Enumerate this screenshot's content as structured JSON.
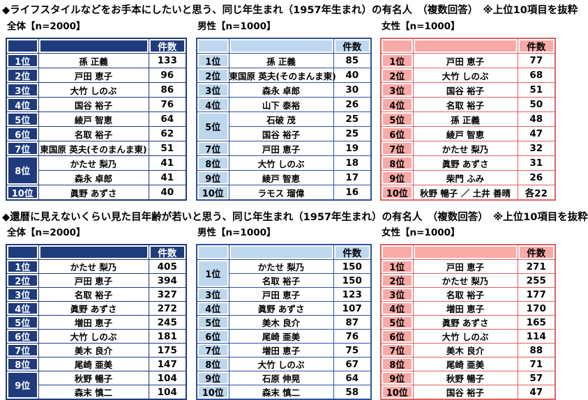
{
  "count_header_label": "件数",
  "sections": [
    {
      "title": "◆ライフスタイルなどをお手本にしたいと思う、同じ年生まれ（1957年生まれ）の有名人　（複数回答）　※上位10項目を抜粋",
      "tables": [
        {
          "label": "全体【n=2000】",
          "theme": "navy",
          "rows": [
            {
              "rank": "1位",
              "name": "孫 正義",
              "count": "133"
            },
            {
              "rank": "2位",
              "name": "戸田 恵子",
              "count": "96"
            },
            {
              "rank": "3位",
              "name": "大竹 しのぶ",
              "count": "86"
            },
            {
              "rank": "4位",
              "name": "国谷 裕子",
              "count": "76"
            },
            {
              "rank": "5位",
              "name": "綾戸 智恵",
              "count": "64"
            },
            {
              "rank": "6位",
              "name": "名取 裕子",
              "count": "62"
            },
            {
              "rank": "7位",
              "name": "東国原 英夫(そのまんま東)",
              "count": "51"
            },
            {
              "rank": "8位",
              "span": 2,
              "name": "かたせ 梨乃",
              "count": "41"
            },
            {
              "name": "森永 卓郎",
              "count": "41"
            },
            {
              "rank": "10位",
              "name": "眞野 あずさ",
              "count": "40"
            }
          ]
        },
        {
          "label": "男性【n=1000】",
          "theme": "blue",
          "rows": [
            {
              "rank": "1位",
              "name": "孫 正義",
              "count": "85"
            },
            {
              "rank": "2位",
              "name": "東国原 英夫(そのまんま東)",
              "count": "40"
            },
            {
              "rank": "3位",
              "name": "森永 卓郎",
              "count": "30"
            },
            {
              "rank": "4位",
              "name": "山下 泰裕",
              "count": "26"
            },
            {
              "rank": "5位",
              "span": 2,
              "name": "石破 茂",
              "count": "25"
            },
            {
              "name": "国谷 裕子",
              "count": "25"
            },
            {
              "rank": "7位",
              "name": "戸田 恵子",
              "count": "19"
            },
            {
              "rank": "8位",
              "name": "大竹 しのぶ",
              "count": "18"
            },
            {
              "rank": "9位",
              "name": "綾戸 智恵",
              "count": "17"
            },
            {
              "rank": "10位",
              "name": "ラモス 瑠偉",
              "count": "16"
            }
          ]
        },
        {
          "label": "女性【n=1000】",
          "theme": "pink",
          "rows": [
            {
              "rank": "1位",
              "name": "戸田 恵子",
              "count": "77"
            },
            {
              "rank": "2位",
              "name": "大竹 しのぶ",
              "count": "68"
            },
            {
              "rank": "3位",
              "name": "国谷 裕子",
              "count": "51"
            },
            {
              "rank": "4位",
              "name": "名取 裕子",
              "count": "50"
            },
            {
              "rank": "5位",
              "name": "孫 正義",
              "count": "48"
            },
            {
              "rank": "6位",
              "name": "綾戸 智恵",
              "count": "47"
            },
            {
              "rank": "7位",
              "name": "かたせ 梨乃",
              "count": "32"
            },
            {
              "rank": "8位",
              "name": "眞野 あずさ",
              "count": "31"
            },
            {
              "rank": "9位",
              "name": "柴門 ふみ",
              "count": "26"
            },
            {
              "rank": "10位",
              "name": "秋野 暢子 ／ 土井 善晴",
              "count": "各22"
            }
          ]
        }
      ]
    },
    {
      "title": "◆還暦に見えないくらい見た目年齢が若いと思う、同じ年生まれ（1957年生まれ）の有名人　（複数回答）　※上位10項目を抜粋",
      "tables": [
        {
          "label": "全体【n=2000】",
          "theme": "navy",
          "rows": [
            {
              "rank": "1位",
              "name": "かたせ 梨乃",
              "count": "405"
            },
            {
              "rank": "2位",
              "name": "戸田 恵子",
              "count": "394"
            },
            {
              "rank": "3位",
              "name": "名取 裕子",
              "count": "327"
            },
            {
              "rank": "4位",
              "name": "眞野 あずさ",
              "count": "272"
            },
            {
              "rank": "5位",
              "name": "増田 恵子",
              "count": "245"
            },
            {
              "rank": "6位",
              "name": "大竹 しのぶ",
              "count": "181"
            },
            {
              "rank": "7位",
              "name": "美木 良介",
              "count": "175"
            },
            {
              "rank": "8位",
              "name": "尾崎 亜美",
              "count": "147"
            },
            {
              "rank": "9位",
              "span": 2,
              "name": "秋野 暢子",
              "count": "104"
            },
            {
              "name": "森末 慎二",
              "count": "104"
            }
          ]
        },
        {
          "label": "男性【n=1000】",
          "theme": "blue",
          "rows": [
            {
              "rank": "1位",
              "span": 2,
              "name": "かたせ 梨乃",
              "count": "150"
            },
            {
              "name": "名取 裕子",
              "count": "150"
            },
            {
              "rank": "3位",
              "name": "戸田 恵子",
              "count": "123"
            },
            {
              "rank": "4位",
              "name": "眞野 あずさ",
              "count": "107"
            },
            {
              "rank": "5位",
              "name": "美木 良介",
              "count": "87"
            },
            {
              "rank": "6位",
              "name": "尾崎 亜美",
              "count": "76"
            },
            {
              "rank": "7位",
              "name": "増田 恵子",
              "count": "75"
            },
            {
              "rank": "8位",
              "name": "大竹 しのぶ",
              "count": "67"
            },
            {
              "rank": "9位",
              "name": "石原 伸晃",
              "count": "64"
            },
            {
              "rank": "10位",
              "name": "森末 慎二",
              "count": "58"
            }
          ]
        },
        {
          "label": "女性【n=1000】",
          "theme": "pink",
          "rows": [
            {
              "rank": "1位",
              "name": "戸田 恵子",
              "count": "271"
            },
            {
              "rank": "2位",
              "name": "かたせ 梨乃",
              "count": "255"
            },
            {
              "rank": "3位",
              "name": "名取 裕子",
              "count": "177"
            },
            {
              "rank": "4位",
              "name": "増田 恵子",
              "count": "170"
            },
            {
              "rank": "5位",
              "name": "眞野 あずさ",
              "count": "165"
            },
            {
              "rank": "6位",
              "name": "大竹 しのぶ",
              "count": "114"
            },
            {
              "rank": "7位",
              "name": "美木 良介",
              "count": "88"
            },
            {
              "rank": "8位",
              "name": "尾崎 亜美",
              "count": "71"
            },
            {
              "rank": "9位",
              "name": "秋野 暢子",
              "count": "57"
            },
            {
              "rank": "10位",
              "name": "国谷 裕子",
              "count": "47"
            }
          ]
        }
      ]
    }
  ]
}
